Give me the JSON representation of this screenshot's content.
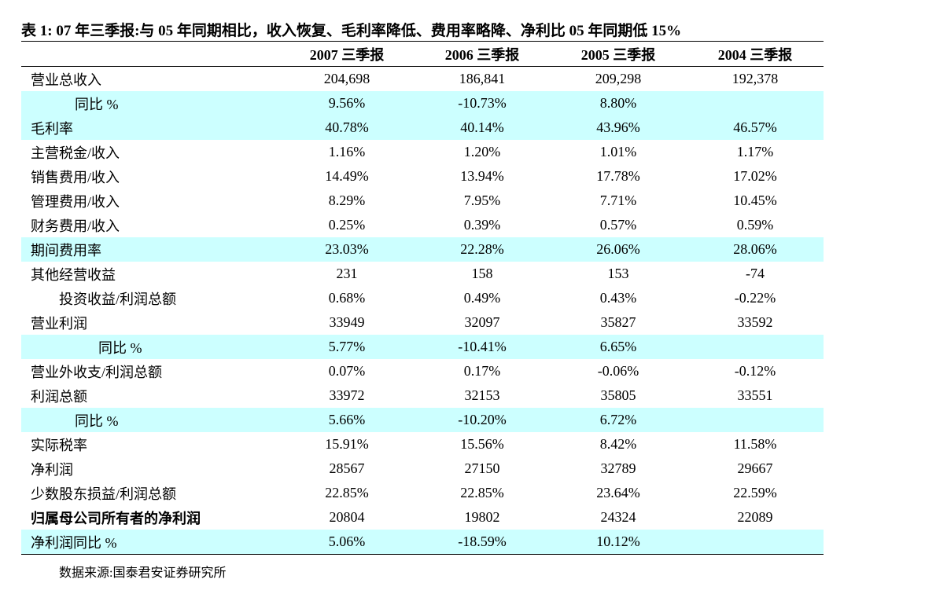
{
  "title": "表 1:  07 年三季报:与 05 年同期相比，收入恢复、毛利率降低、费用率略降、净利比 05 年同期低 15%",
  "table": {
    "header": [
      "2007  三季报",
      "2006  三季报",
      "2005  三季报",
      "2004  三季报"
    ],
    "rows": [
      {
        "label": "营业总收入",
        "values": [
          "204,698",
          "186,841",
          "209,298",
          "192,378"
        ]
      },
      {
        "label": "同比 %",
        "values": [
          "9.56%",
          "-10.73%",
          "8.80%",
          null
        ]
      },
      {
        "label": "毛利率",
        "values": [
          "40.78%",
          "40.14%",
          "43.96%",
          "46.57%"
        ]
      },
      {
        "label": "主营税金/收入",
        "values": [
          "1.16%",
          "1.20%",
          "1.01%",
          "1.17%"
        ]
      },
      {
        "label": "销售费用/收入",
        "values": [
          "14.49%",
          "13.94%",
          "17.78%",
          "17.02%"
        ]
      },
      {
        "label": "管理费用/收入",
        "values": [
          "8.29%",
          "7.95%",
          "7.71%",
          "10.45%"
        ]
      },
      {
        "label": "财务费用/收入",
        "values": [
          "0.25%",
          "0.39%",
          "0.57%",
          "0.59%"
        ]
      },
      {
        "label": "期间费用率",
        "values": [
          "23.03%",
          "22.28%",
          "26.06%",
          "28.06%"
        ]
      },
      {
        "label": "其他经营收益",
        "values": [
          "231",
          "158",
          "153",
          "-74"
        ]
      },
      {
        "label": "投资收益/利润总额",
        "values": [
          "0.68%",
          "0.49%",
          "0.43%",
          "-0.22%"
        ]
      },
      {
        "label": "营业利润",
        "values": [
          "33949",
          "32097",
          "35827",
          "33592"
        ]
      },
      {
        "label": "同比 %",
        "values": [
          "5.77%",
          "-10.41%",
          "6.65%",
          null
        ]
      },
      {
        "label": "营业外收支/利润总额",
        "values": [
          "0.07%",
          "0.17%",
          "-0.06%",
          "-0.12%"
        ]
      },
      {
        "label": "利润总额",
        "values": [
          "33972",
          "32153",
          "35805",
          "33551"
        ]
      },
      {
        "label": "同比 %",
        "values": [
          "5.66%",
          "-10.20%",
          "6.72%",
          null
        ]
      },
      {
        "label": "实际税率",
        "values": [
          "15.91%",
          "15.56%",
          "8.42%",
          "11.58%"
        ]
      },
      {
        "label": "净利润",
        "values": [
          "28567",
          "27150",
          "32789",
          "29667"
        ]
      },
      {
        "label": "少数股东损益/利润总额",
        "values": [
          "22.85%",
          "22.85%",
          "23.64%",
          "22.59%"
        ]
      },
      {
        "label": "归属母公司所有者的净利润",
        "values": [
          "20804",
          "19802",
          "24324",
          "22089"
        ]
      },
      {
        "label": "净利润同比 %",
        "values": [
          "5.06%",
          "-18.59%",
          "10.12%",
          null
        ]
      }
    ]
  },
  "source": "数据来源:国泰君安证券研究所"
}
